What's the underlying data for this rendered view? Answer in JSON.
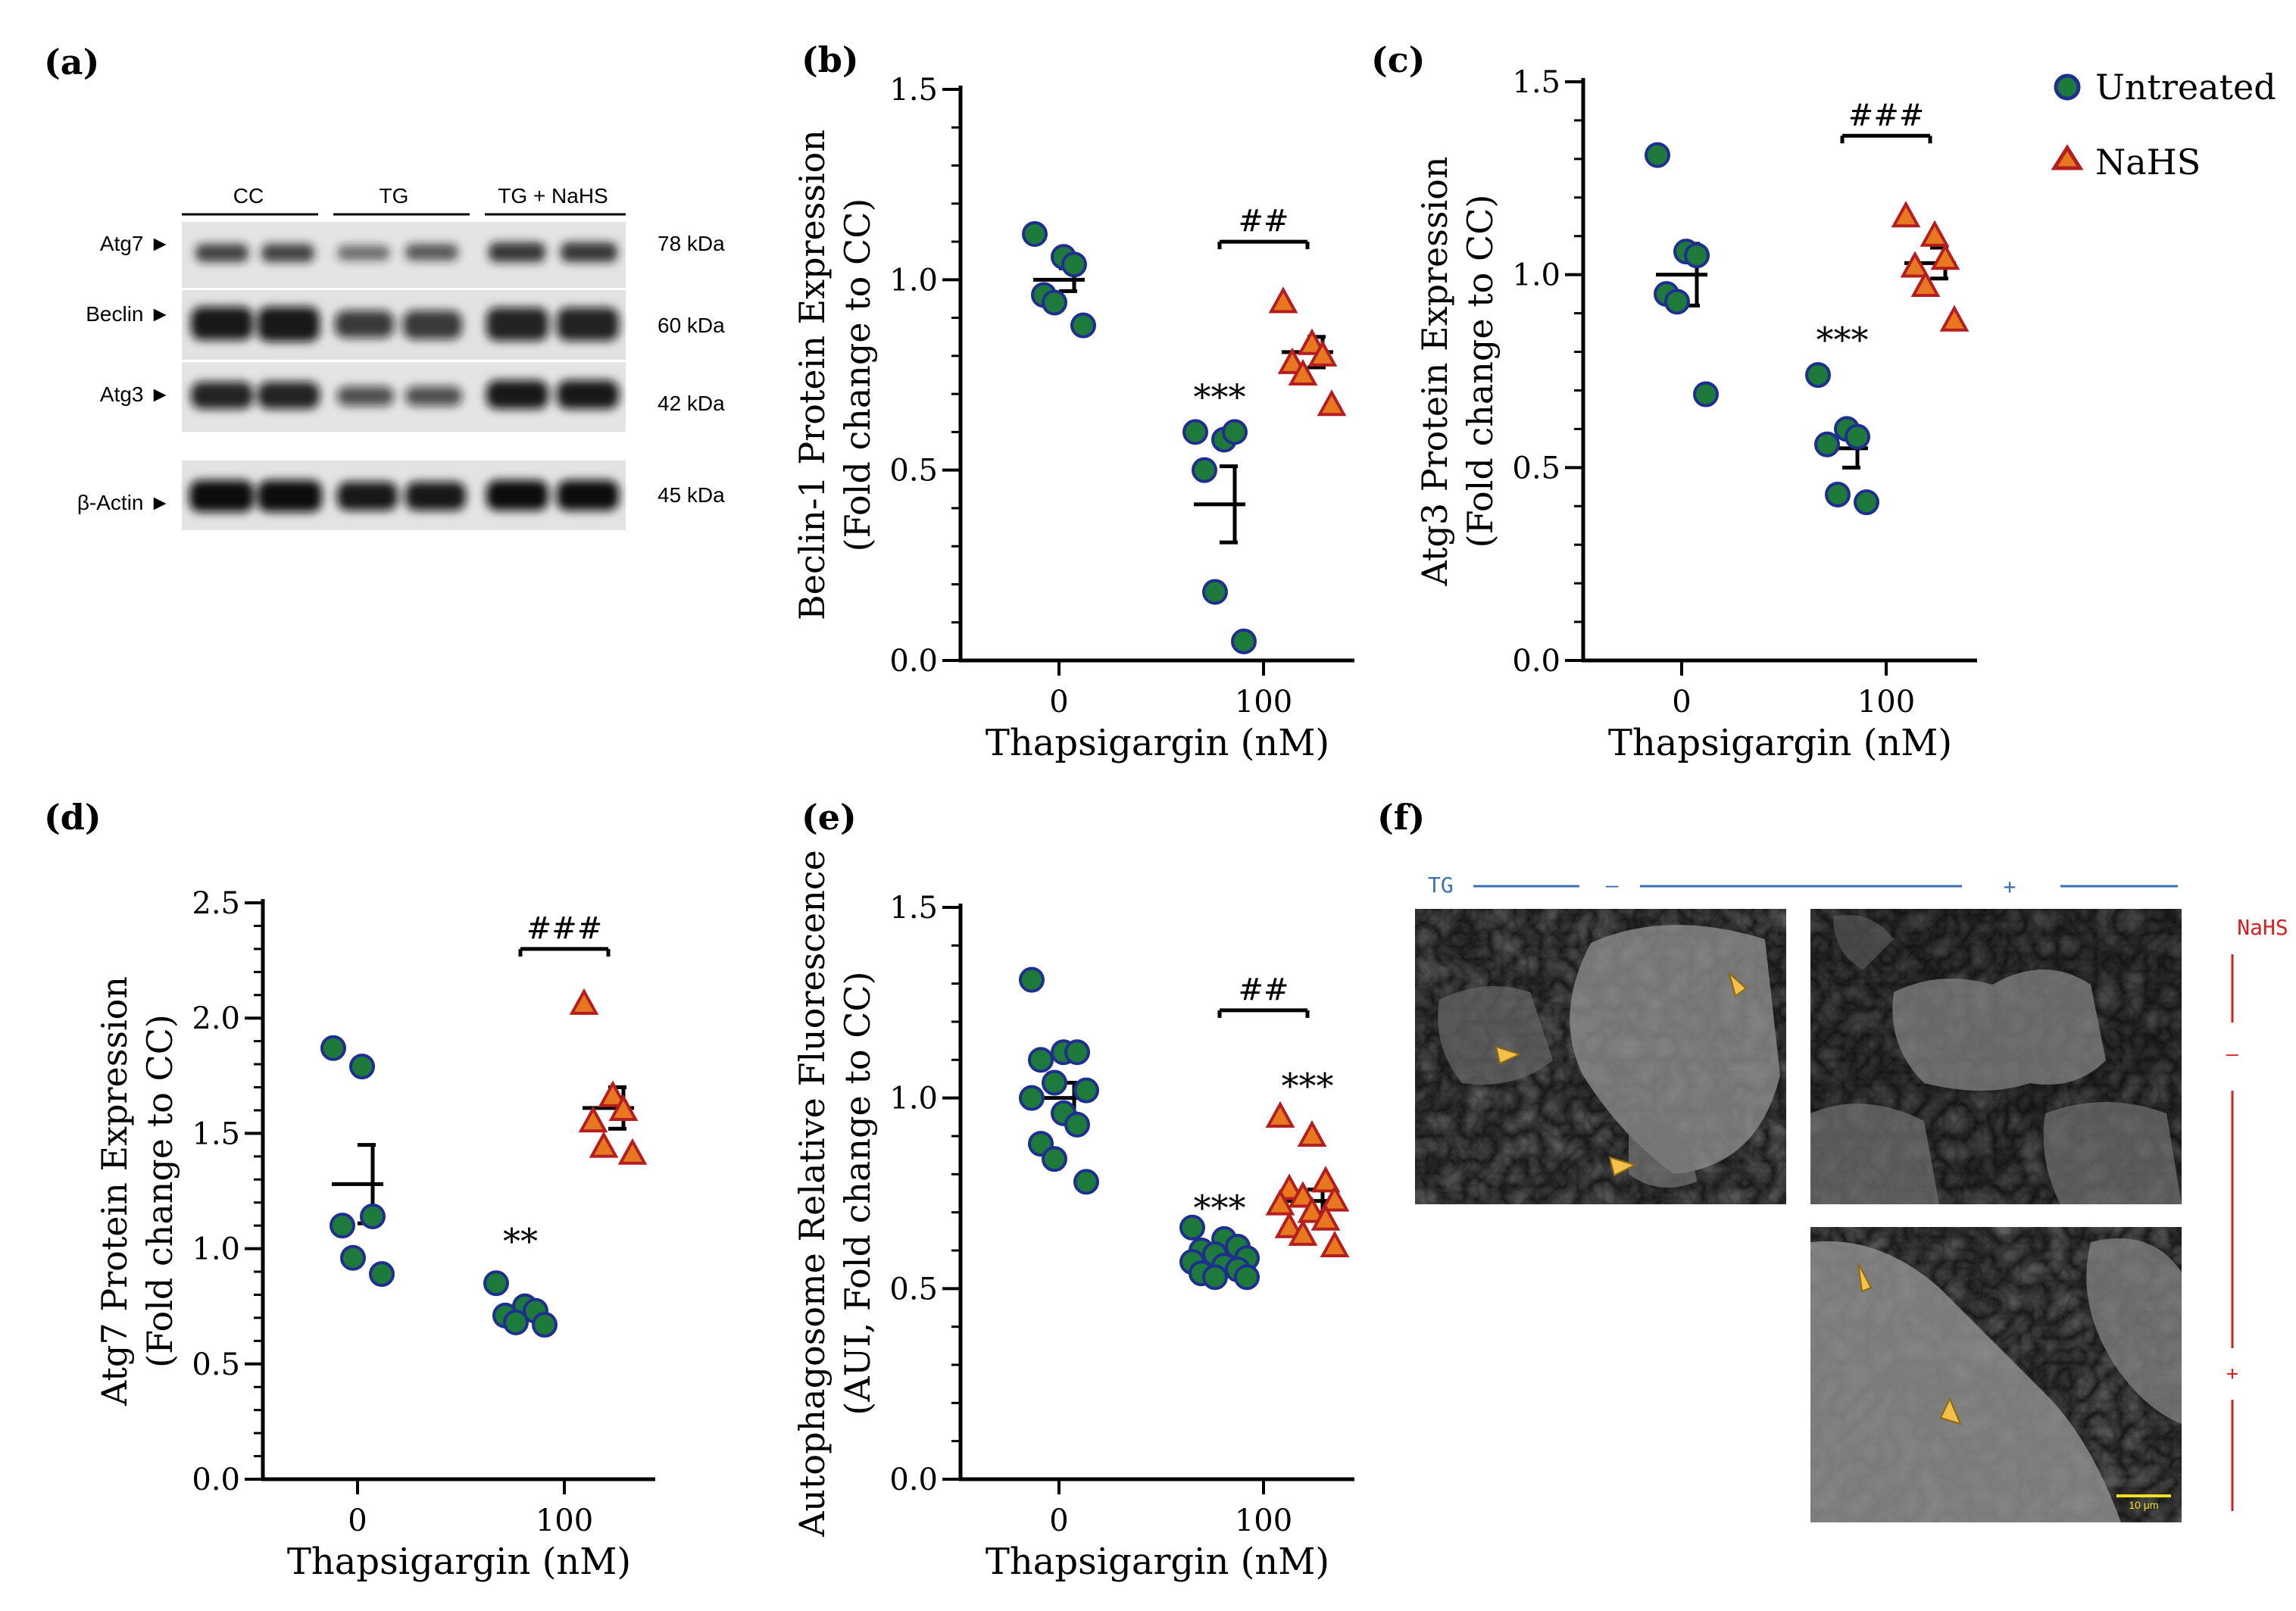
{
  "legend": {
    "untreated": "Untreated",
    "nahs": "NaHS",
    "untreated_color": "#1d7a3a",
    "untreated_edge": "#1f2f8f",
    "nahs_color": "#e87820",
    "nahs_edge": "#b51e1e"
  },
  "panel_a": {
    "label": "(a)",
    "groups": [
      "CC",
      "TG",
      "TG + NaHS"
    ],
    "bands": [
      {
        "name": "Atg7 ►",
        "size": "78 kDa"
      },
      {
        "name": "Beclin ►",
        "size": "60 kDa"
      },
      {
        "name": "Atg3 ►",
        "size": "42 kDa"
      },
      {
        "name": "β-Actin ►",
        "size": "45 kDa"
      }
    ]
  },
  "panel_f": {
    "label": "(f)",
    "tg_label": "TG",
    "tg_minus": "–",
    "tg_plus": "+",
    "nahs_label": "NaHS",
    "nahs_minus": "–",
    "nahs_plus": "+",
    "scale_bar": "10 μm"
  },
  "chart_data": [
    {
      "panel": "(b)",
      "type": "scatter",
      "ylabel": "Beclin-1 Protein Expression",
      "ylabel2": "(Fold change to CC)",
      "xlabel": "Thapsigargin (nM)",
      "categories": [
        "0",
        "100"
      ],
      "ylim": [
        0,
        1.5
      ],
      "yticks": [
        "0.0",
        "0.5",
        "1.0",
        "1.5"
      ],
      "series": [
        {
          "name": "Untreated, 0 nM",
          "group": 0,
          "marker": "circle",
          "values": [
            1.12,
            1.06,
            1.04,
            0.96,
            0.94,
            0.88
          ],
          "mean": 1.0,
          "sem": 0.03
        },
        {
          "name": "Untreated, 100 nM",
          "group": 1,
          "marker": "circle",
          "values": [
            0.6,
            0.58,
            0.6,
            0.5,
            0.18,
            0.05
          ],
          "mean": 0.41,
          "sem": 0.1
        },
        {
          "name": "NaHS, 100 nM",
          "group": 1,
          "marker": "triangle",
          "values": [
            0.94,
            0.83,
            0.8,
            0.78,
            0.75,
            0.67
          ],
          "mean": 0.81,
          "sem": 0.04
        }
      ],
      "annotations": [
        {
          "text": "***",
          "group": 0,
          "y": 0.66
        },
        {
          "text": "##",
          "group": 1,
          "y": 1.1
        }
      ]
    },
    {
      "panel": "(c)",
      "type": "scatter",
      "ylabel": "Atg3 Protein Expression",
      "ylabel2": "(Fold change to CC)",
      "xlabel": "Thapsigargin (nM)",
      "categories": [
        "0",
        "100"
      ],
      "ylim": [
        0,
        1.5
      ],
      "yticks": [
        "0.0",
        "0.5",
        "1.0",
        "1.5"
      ],
      "series": [
        {
          "name": "Untreated, 0 nM",
          "group": 0,
          "marker": "circle",
          "values": [
            1.31,
            1.06,
            1.05,
            0.95,
            0.93,
            0.69
          ],
          "mean": 1.0,
          "sem": 0.08
        },
        {
          "name": "Untreated, 100 nM",
          "group": 1,
          "marker": "circle",
          "values": [
            0.74,
            0.6,
            0.58,
            0.56,
            0.43,
            0.41
          ],
          "mean": 0.55,
          "sem": 0.05
        },
        {
          "name": "NaHS, 100 nM",
          "group": 1,
          "marker": "triangle",
          "values": [
            1.15,
            1.1,
            1.04,
            1.02,
            0.97,
            0.88
          ],
          "mean": 1.03,
          "sem": 0.04
        }
      ],
      "annotations": [
        {
          "text": "***",
          "group": 0,
          "y": 0.8
        },
        {
          "text": "###",
          "group": 1,
          "y": 1.36
        }
      ]
    },
    {
      "panel": "(d)",
      "type": "scatter",
      "ylabel": "Atg7 Protein Expression",
      "ylabel2": "(Fold change to CC)",
      "xlabel": "Thapsigargin (nM)",
      "categories": [
        "0",
        "100"
      ],
      "ylim": [
        0,
        2.5
      ],
      "yticks": [
        "0.0",
        "0.5",
        "1.0",
        "1.5",
        "2.0",
        "2.5"
      ],
      "series": [
        {
          "name": "Untreated, 0 nM",
          "group": 0,
          "marker": "circle",
          "values": [
            1.87,
            1.79,
            1.14,
            1.1,
            0.96,
            0.89
          ],
          "mean": 1.28,
          "sem": 0.17
        },
        {
          "name": "Untreated, 100 nM",
          "group": 1,
          "marker": "circle",
          "values": [
            0.85,
            0.75,
            0.73,
            0.71,
            0.68,
            0.67
          ],
          "mean": 0.72,
          "sem": 0.03
        },
        {
          "name": "NaHS, 100 nM",
          "group": 1,
          "marker": "triangle",
          "values": [
            2.06,
            1.66,
            1.6,
            1.55,
            1.44,
            1.41
          ],
          "mean": 1.61,
          "sem": 0.09
        }
      ],
      "annotations": [
        {
          "text": "**",
          "group": 0,
          "y": 0.98
        },
        {
          "text": "###",
          "group": 1,
          "y": 2.3
        }
      ]
    },
    {
      "panel": "(e)",
      "type": "scatter",
      "ylabel": "Autophagosome Relative Fluorescence",
      "ylabel2": "(AUI, Fold change to CC)",
      "xlabel": "Thapsigargin (nM)",
      "categories": [
        "0",
        "100"
      ],
      "ylim": [
        0,
        1.5
      ],
      "yticks": [
        "0.0",
        "0.5",
        "1.0",
        "1.5"
      ],
      "series": [
        {
          "name": "Untreated, 0 nM",
          "group": 0,
          "marker": "circle",
          "values": [
            1.31,
            1.12,
            1.12,
            1.1,
            1.04,
            1.02,
            1.0,
            0.96,
            0.93,
            0.88,
            0.84,
            0.78
          ],
          "mean": 1.0,
          "sem": 0.04
        },
        {
          "name": "Untreated, 100 nM",
          "group": 1,
          "marker": "circle",
          "values": [
            0.66,
            0.63,
            0.61,
            0.6,
            0.59,
            0.58,
            0.57,
            0.56,
            0.55,
            0.54,
            0.53,
            0.53
          ],
          "mean": 0.58,
          "sem": 0.015
        },
        {
          "name": "NaHS, 100 nM",
          "group": 1,
          "marker": "triangle",
          "values": [
            0.95,
            0.9,
            0.78,
            0.76,
            0.74,
            0.73,
            0.72,
            0.7,
            0.68,
            0.66,
            0.64,
            0.61
          ],
          "mean": 0.73,
          "sem": 0.03
        }
      ],
      "annotations": [
        {
          "text": "***",
          "group": 0,
          "y": 0.68
        },
        {
          "text": "***",
          "group": 1,
          "y": 1.0
        },
        {
          "text": "##",
          "group": 1,
          "y": 1.23
        }
      ]
    }
  ]
}
